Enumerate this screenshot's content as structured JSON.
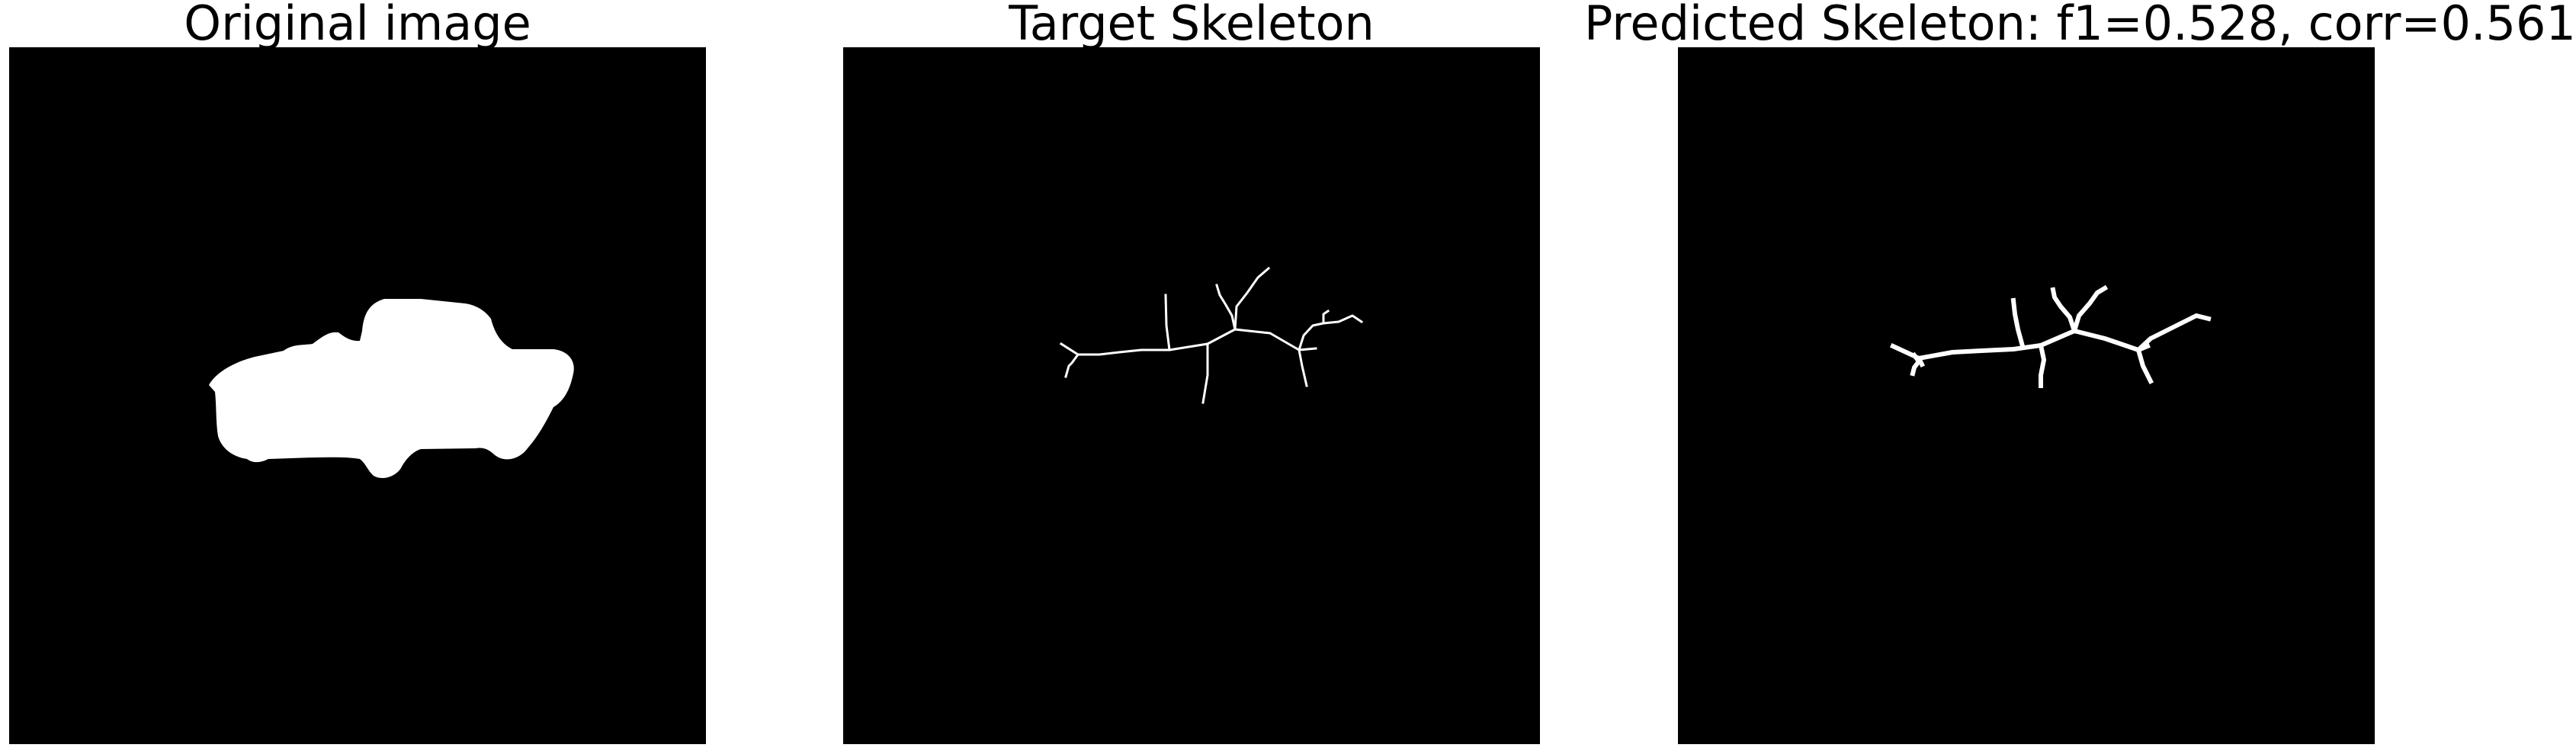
{
  "panels": [
    {
      "title": "Original image",
      "content": "silhouette"
    },
    {
      "title": "Target Skeleton",
      "content": "skeleton"
    },
    {
      "title": "Predicted Skeleton: f1=0.528, corr=0.561",
      "content": "skeleton"
    }
  ],
  "colors": {
    "figure_background": "#ffffff",
    "panel_background": "#000000",
    "foreground": "#ffffff",
    "title_text": "#000000"
  }
}
